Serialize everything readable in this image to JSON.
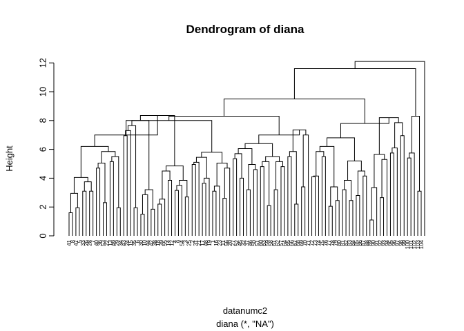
{
  "chart_data": {
    "type": "dendrogram",
    "title": "Dendrogram of diana",
    "xlabel": "datanumc2",
    "sublabel": "diana (*, \"NA\")",
    "ylabel": "Height",
    "yticks": [
      0,
      2,
      4,
      6,
      8,
      10,
      12
    ],
    "ylim": [
      0,
      12.3
    ],
    "leaf_count": 104,
    "leaf_labels": [
      "41",
      "8",
      "47",
      "5",
      "33",
      "26",
      "28",
      "7",
      "40",
      "36",
      "53",
      "22",
      "13",
      "49",
      "29",
      "34",
      "43",
      "24",
      "15",
      "35",
      "6",
      "30",
      "10",
      "44",
      "42",
      "38",
      "18",
      "39",
      "55",
      "14",
      "12",
      "4",
      "9",
      "54",
      "3",
      "25",
      "2",
      "31",
      "21",
      "17",
      "48",
      "19",
      "1",
      "16",
      "23",
      "11",
      "56",
      "20",
      "27",
      "52",
      "45",
      "32",
      "37",
      "46",
      "50",
      "51",
      "60",
      "63",
      "59",
      "58",
      "61",
      "62",
      "57",
      "64",
      "65",
      "66",
      "67",
      "68",
      "69",
      "70",
      "71",
      "72",
      "73",
      "74",
      "75",
      "76",
      "77",
      "78",
      "79",
      "80",
      "81",
      "82",
      "83",
      "84",
      "85",
      "86",
      "87",
      "88",
      "89",
      "90",
      "91",
      "92",
      "93",
      "94",
      "95",
      "96",
      "97",
      "98",
      "99",
      "100",
      "101",
      "102",
      "103",
      "104"
    ],
    "root_height": 12.1,
    "major_merge_heights": [
      12.1,
      11.6,
      9.5,
      8.3,
      8.0,
      7.8,
      7.0,
      6.9,
      6.1,
      5.8
    ],
    "merge_heights": [
      1.6,
      1.95,
      2.95,
      3.1,
      3.1,
      3.75,
      4.05,
      4.7,
      2.3,
      3.25,
      5.15,
      1.95,
      2.7,
      3.8,
      4.55,
      6.95,
      2.45,
      1.95,
      2.3,
      1.5,
      2.85,
      1.85,
      1.9,
      2.9,
      2.2,
      1.4,
      3.85,
      4.5,
      3.15,
      2.05,
      2.7,
      2.15,
      4.3,
      4.7,
      4.95,
      5.1,
      3.65,
      2.6,
      2.25,
      3.1,
      1.8,
      2.6,
      4.7,
      2.3,
      5.2,
      5.35,
      4.0,
      2.65,
      3.2,
      4.6,
      2.45,
      1.8,
      4.8,
      2.1,
      2.5,
      3.2,
      4.8,
      2.2,
      2.9,
      5.8,
      5.5,
      2.2,
      2.9,
      3.4,
      7.0,
      2.3,
      4.1,
      4.15,
      5.5,
      5.85,
      2.05,
      2.45,
      3.4,
      2.6,
      3.2,
      2.45,
      3.85,
      2.8,
      4.15,
      3.95,
      5.2,
      6.8,
      1.1,
      3.35,
      2.65,
      5.3,
      4.55,
      5.75,
      4.25,
      6.95,
      7.85,
      2.45,
      5.4,
      4.25,
      3.1,
      8.3
    ]
  }
}
